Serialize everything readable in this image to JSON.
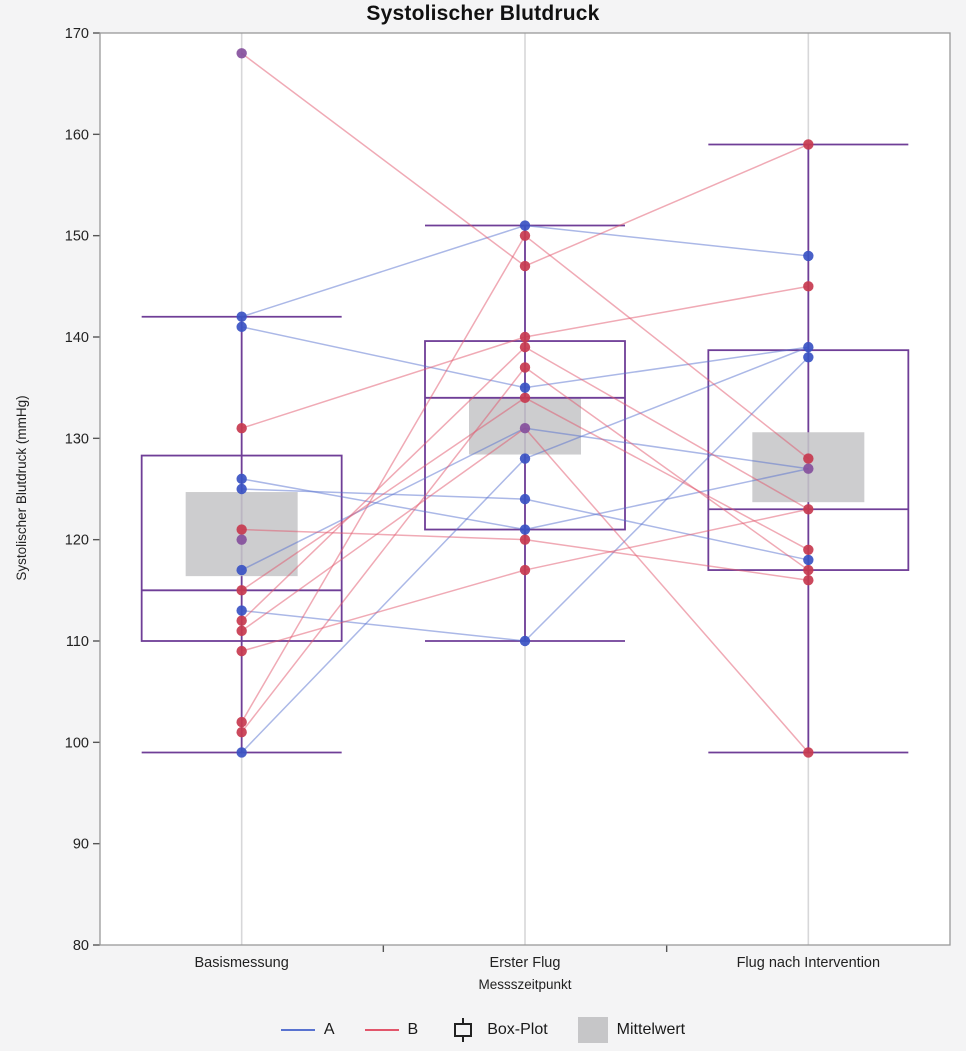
{
  "title": "Systolischer Blutdruck",
  "legend": {
    "group_a_label": "A",
    "group_b_label": "B",
    "box_label": "Box-Plot",
    "mean_label": "Mittelwert"
  },
  "colors": {
    "group_a_dot": "#3952c3",
    "group_a_line": "#5872d0",
    "group_b_dot": "#c73a4f",
    "group_b_line": "#e2566b",
    "overlap_dot": "#86509d",
    "box": "#6f3e97",
    "mean_box": "#c6c6c8",
    "grid": "#d7d7d9",
    "frame": "#999999",
    "plot_bg": "#ffffff",
    "page_bg": "#f4f4f5",
    "text": "#222222"
  },
  "chart_data": {
    "type": "line",
    "subtype": "paired-spaghetti-with-boxplots",
    "title": "Systolischer Blutdruck",
    "xlabel": "Messszeitpunkt",
    "ylabel": "Systolischer Blutdruck (mmHg)",
    "ylim": [
      80,
      170
    ],
    "ytick_step": 10,
    "grid": "vertical category gridlines only",
    "legend_position": "bottom",
    "categories": [
      "Basismessung",
      "Erster Flug",
      "Flug nach Intervention"
    ],
    "points": [
      {
        "category": "Basismessung",
        "A": [
          142,
          141,
          126,
          125,
          117,
          113,
          99
        ],
        "B": [
          131,
          121,
          115,
          112,
          111,
          109,
          102,
          101
        ],
        "overlap": [
          168,
          120
        ]
      },
      {
        "category": "Erster Flug",
        "A": [
          151,
          135,
          128,
          124,
          121,
          110
        ],
        "B": [
          150,
          147,
          140,
          139,
          137,
          134,
          120,
          117
        ],
        "overlap": [
          131
        ]
      },
      {
        "category": "Flug nach Intervention",
        "A": [
          148,
          139,
          138,
          118
        ],
        "B": [
          159,
          145,
          128,
          123,
          119,
          117,
          116,
          99
        ],
        "overlap": [
          127
        ]
      }
    ],
    "segments": {
      "A": [
        [
          0,
          142,
          151
        ],
        [
          0,
          141,
          135
        ],
        [
          0,
          126,
          121
        ],
        [
          0,
          125,
          124
        ],
        [
          0,
          117,
          131
        ],
        [
          0,
          113,
          110
        ],
        [
          0,
          99,
          128
        ],
        [
          1,
          151,
          148
        ],
        [
          1,
          135,
          139
        ],
        [
          1,
          121,
          127
        ],
        [
          1,
          124,
          118
        ],
        [
          1,
          131,
          127
        ],
        [
          1,
          110,
          138
        ],
        [
          1,
          128,
          139
        ]
      ],
      "B": [
        [
          0,
          168,
          147
        ],
        [
          0,
          131,
          140
        ],
        [
          0,
          121,
          120
        ],
        [
          0,
          115,
          134
        ],
        [
          0,
          112,
          139
        ],
        [
          0,
          111,
          131
        ],
        [
          0,
          109,
          117
        ],
        [
          0,
          102,
          150
        ],
        [
          0,
          101,
          137
        ],
        [
          1,
          147,
          159
        ],
        [
          1,
          140,
          145
        ],
        [
          1,
          150,
          128
        ],
        [
          1,
          139,
          123
        ],
        [
          1,
          137,
          117
        ],
        [
          1,
          134,
          119
        ],
        [
          1,
          131,
          99
        ],
        [
          1,
          120,
          116
        ],
        [
          1,
          117,
          123
        ]
      ]
    },
    "boxplots": [
      {
        "category": "Basismessung",
        "whisker_low": 99,
        "q1": 110,
        "median": 115,
        "q3": 128.3,
        "whisker_high": 142,
        "mean_box": {
          "low": 116.4,
          "high": 124.7
        }
      },
      {
        "category": "Erster Flug",
        "whisker_low": 110,
        "q1": 121,
        "median": 134,
        "q3": 139.6,
        "whisker_high": 151,
        "mean_box": {
          "low": 128.4,
          "high": 134.0
        }
      },
      {
        "category": "Flug nach Intervention",
        "whisker_low": 99,
        "q1": 117,
        "median": 123,
        "q3": 138.7,
        "whisker_high": 159,
        "mean_box": {
          "low": 123.7,
          "high": 130.6
        }
      }
    ]
  }
}
